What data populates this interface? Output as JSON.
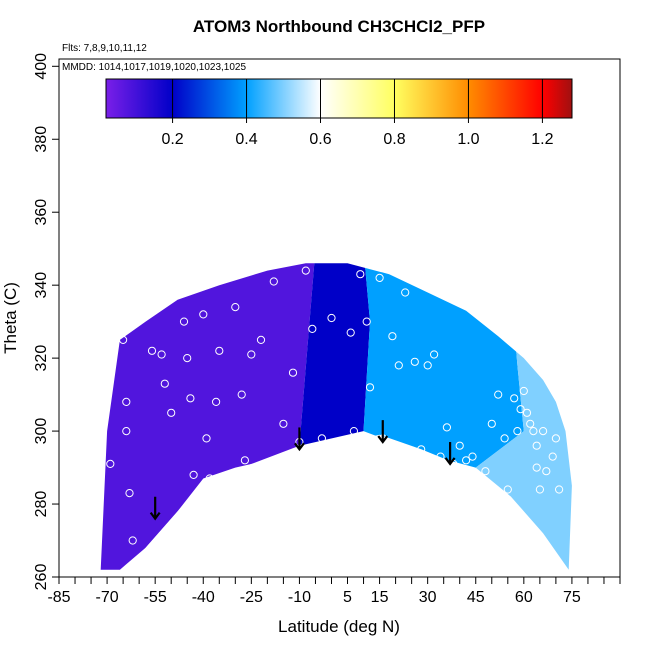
{
  "chart_data": {
    "type": "heatmap",
    "title": "ATOM3 Northbound CH3CHCl2_PFP",
    "flights_label": "Flts: 7,8,9,10,11,12",
    "dates_label": "MMDD: 1014,1017,1019,1020,1023,1025",
    "xlabel": "Latitude (deg N)",
    "ylabel": "Theta (C)",
    "xlim": [
      -85,
      90
    ],
    "ylim": [
      260,
      402
    ],
    "x_ticks": [
      -85,
      -70,
      -55,
      -40,
      -25,
      -10,
      5,
      15,
      30,
      45,
      60,
      75
    ],
    "y_ticks": [
      260,
      280,
      300,
      320,
      340,
      360,
      380,
      400
    ],
    "colorbar": {
      "range": [
        0.02,
        1.28
      ],
      "ticks": [
        0.2,
        0.4,
        0.6,
        0.8,
        1.0,
        1.2
      ],
      "tick_labels": [
        "0.2",
        "0.4",
        "0.6",
        "0.8",
        "1.0",
        "1.2"
      ],
      "divisions": [
        0.02,
        0.2,
        0.4,
        0.6,
        0.8,
        1.0,
        1.2,
        1.28
      ],
      "colors": [
        "#7a1fe8",
        "#0000c8",
        "#00a0ff",
        "#ffffff",
        "#ffff60",
        "#ff8c00",
        "#ff0000",
        "#a01010"
      ]
    },
    "field": {
      "top_boundary": [
        [
          -72,
          262
        ],
        [
          -70,
          300
        ],
        [
          -66,
          325
        ],
        [
          -58,
          330
        ],
        [
          -48,
          336
        ],
        [
          -35,
          340
        ],
        [
          -20,
          344
        ],
        [
          -8,
          346
        ],
        [
          5,
          346
        ],
        [
          18,
          343
        ],
        [
          30,
          338
        ],
        [
          42,
          333
        ],
        [
          52,
          326
        ],
        [
          60,
          320
        ],
        [
          66,
          314
        ],
        [
          70,
          308
        ],
        [
          73,
          300
        ],
        [
          75,
          285
        ],
        [
          74,
          262
        ]
      ],
      "bottom_boundary": [
        [
          74,
          262
        ],
        [
          66,
          272
        ],
        [
          56,
          282
        ],
        [
          42,
          290
        ],
        [
          28,
          295
        ],
        [
          15,
          299
        ],
        [
          5,
          297
        ],
        [
          -5,
          295
        ],
        [
          -15,
          293
        ],
        [
          -30,
          290
        ],
        [
          -40,
          287
        ],
        [
          -48,
          278
        ],
        [
          -58,
          268
        ],
        [
          -66,
          262
        ],
        [
          -72,
          262
        ]
      ],
      "regions": [
        {
          "value": 0.08,
          "polygon": [
            [
              -75,
              258
            ],
            [
              -75,
              350
            ],
            [
              -5,
              350
            ],
            [
              -10,
              296
            ],
            [
              -40,
              286
            ],
            [
              -58,
              268
            ],
            [
              -66,
              260
            ]
          ]
        },
        {
          "value": 0.2,
          "polygon": [
            [
              -10,
              296
            ],
            [
              -5,
              350
            ],
            [
              10,
              350
            ],
            [
              12,
              330
            ],
            [
              10,
              300
            ]
          ]
        },
        {
          "value": 0.4,
          "polygon": [
            [
              10,
              300
            ],
            [
              12,
              330
            ],
            [
              10,
              350
            ],
            [
              55,
              350
            ],
            [
              58,
              318
            ],
            [
              60,
              300
            ],
            [
              45,
              290
            ],
            [
              28,
              294
            ]
          ]
        },
        {
          "value": 0.5,
          "polygon": [
            [
              45,
              290
            ],
            [
              60,
              300
            ],
            [
              58,
              318
            ],
            [
              55,
              350
            ],
            [
              80,
              350
            ],
            [
              80,
              258
            ],
            [
              68,
              258
            ],
            [
              56,
              282
            ]
          ]
        }
      ]
    },
    "sample_points": [
      [
        -73,
        261
      ],
      [
        -73,
        281
      ],
      [
        -72,
        293
      ],
      [
        -71,
        307
      ],
      [
        -69,
        291
      ],
      [
        -65,
        325
      ],
      [
        -64,
        308
      ],
      [
        -64,
        300
      ],
      [
        -63,
        283
      ],
      [
        -62,
        270
      ],
      [
        -56,
        322
      ],
      [
        -53,
        321
      ],
      [
        -52,
        313
      ],
      [
        -50,
        305
      ],
      [
        -46,
        330
      ],
      [
        -45,
        320
      ],
      [
        -44,
        309
      ],
      [
        -43,
        288
      ],
      [
        -40,
        332
      ],
      [
        -39,
        298
      ],
      [
        -38,
        287
      ],
      [
        -36,
        308
      ],
      [
        -35,
        322
      ],
      [
        -30,
        334
      ],
      [
        -28,
        310
      ],
      [
        -27,
        292
      ],
      [
        -25,
        321
      ],
      [
        -22,
        325
      ],
      [
        -18,
        341
      ],
      [
        -15,
        302
      ],
      [
        -12,
        316
      ],
      [
        -10,
        297
      ],
      [
        -8,
        344
      ],
      [
        -6,
        328
      ],
      [
        -3,
        298
      ],
      [
        0,
        331
      ],
      [
        6,
        327
      ],
      [
        7,
        300
      ],
      [
        9,
        343
      ],
      [
        11,
        330
      ],
      [
        12,
        312
      ],
      [
        15,
        342
      ],
      [
        16,
        298
      ],
      [
        17,
        297
      ],
      [
        19,
        326
      ],
      [
        21,
        318
      ],
      [
        23,
        338
      ],
      [
        26,
        319
      ],
      [
        28,
        295
      ],
      [
        30,
        318
      ],
      [
        32,
        321
      ],
      [
        34,
        293
      ],
      [
        36,
        301
      ],
      [
        38,
        291
      ],
      [
        40,
        296
      ],
      [
        42,
        292
      ],
      [
        44,
        293
      ],
      [
        46,
        284
      ],
      [
        48,
        289
      ],
      [
        50,
        302
      ],
      [
        52,
        310
      ],
      [
        54,
        298
      ],
      [
        55,
        284
      ],
      [
        57,
        309
      ],
      [
        58,
        300
      ],
      [
        59,
        306
      ],
      [
        60,
        311
      ],
      [
        61,
        305
      ],
      [
        62,
        302
      ],
      [
        63,
        300
      ],
      [
        64,
        296
      ],
      [
        64,
        290
      ],
      [
        65,
        284
      ],
      [
        66,
        300
      ],
      [
        67,
        289
      ],
      [
        69,
        293
      ],
      [
        70,
        298
      ],
      [
        71,
        284
      ]
    ],
    "arrows": [
      {
        "lat": -55,
        "theta_top": 282,
        "theta_bottom": 276
      },
      {
        "lat": -10,
        "theta_top": 301,
        "theta_bottom": 295
      },
      {
        "lat": 16,
        "theta_top": 303,
        "theta_bottom": 297
      },
      {
        "lat": 37,
        "theta_top": 297,
        "theta_bottom": 291
      }
    ]
  }
}
